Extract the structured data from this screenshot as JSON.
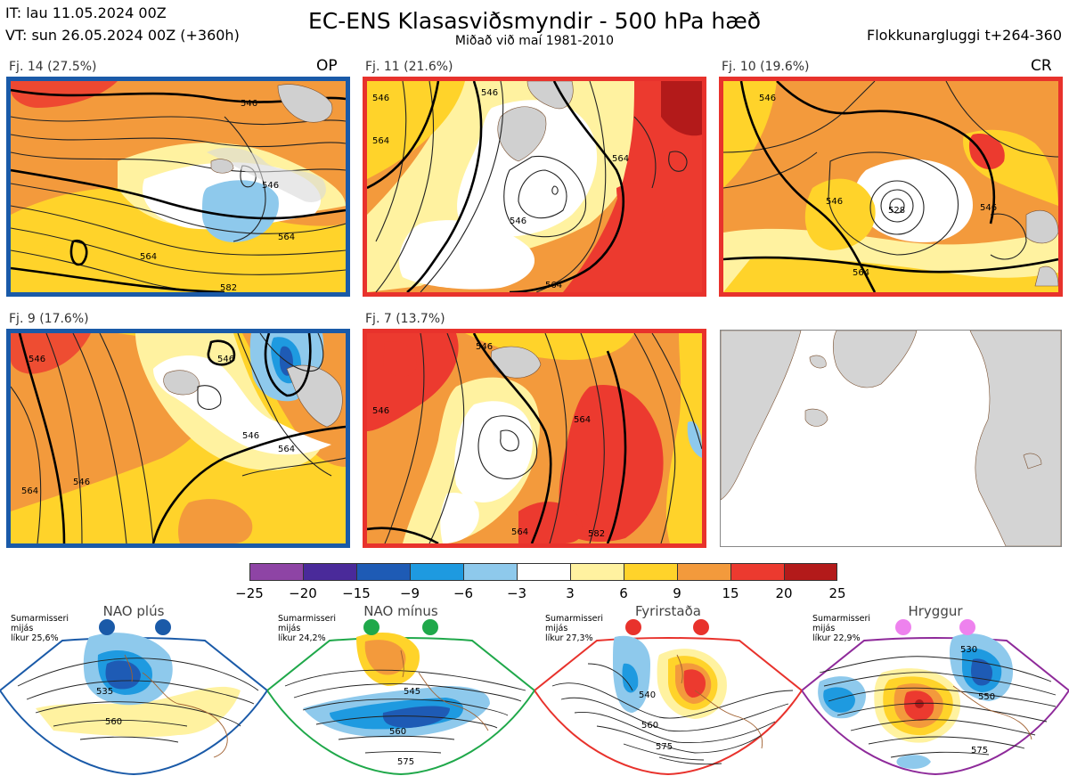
{
  "header": {
    "it_line": "IT: lau 11.05.2024 00Z",
    "vt_line": "VT: sun 26.05.2024 00Z  (+360h)",
    "title": "EC-ENS Klasasviðsmyndir - 500 hPa hæð",
    "subtitle": "Miðað við maí 1981-2010",
    "window": "Flokkunargluggi t+264-360"
  },
  "clusters": [
    {
      "label": "Fj. 14 (27.5%)",
      "tag": "OP",
      "frame_color": "#1a5aa8",
      "contour_labels": [
        "546",
        "546",
        "564",
        "564",
        "582"
      ]
    },
    {
      "label": "Fj. 11 (21.6%)",
      "tag": "",
      "frame_color": "#e8322c",
      "contour_labels": [
        "546",
        "546",
        "564",
        "564",
        "564",
        "546"
      ]
    },
    {
      "label": "Fj. 10 (19.6%)",
      "tag": "CR",
      "frame_color": "#e8322c",
      "contour_labels": [
        "546",
        "528",
        "546",
        "564",
        "546"
      ]
    },
    {
      "label": "Fj. 9 (17.6%)",
      "tag": "",
      "frame_color": "#1a5aa8",
      "contour_labels": [
        "546",
        "546",
        "564",
        "546",
        "564",
        "546"
      ]
    },
    {
      "label": "Fj. 7 (13.7%)",
      "tag": "",
      "frame_color": "#e8322c",
      "contour_labels": [
        "546",
        "546",
        "564",
        "564",
        "582"
      ]
    }
  ],
  "colorbar": {
    "ticks": [
      "−25",
      "−20",
      "−15",
      "−9",
      "−6",
      "−3",
      "3",
      "6",
      "9",
      "15",
      "20",
      "25"
    ],
    "colors": [
      "#8e44a5",
      "#4a2a9a",
      "#1e5bb5",
      "#1e9ae0",
      "#8ec9ec",
      "#ffffff",
      "#fff2a0",
      "#ffd32a",
      "#f39a3c",
      "#ec3a2f",
      "#b31a1a"
    ]
  },
  "regimes": [
    {
      "name": "NAO plús",
      "season": "Sumarmisseri",
      "period": "mijás",
      "likelihood": "líkur 25,6%",
      "color": "#1a5aa8",
      "contour_labels": [
        "535",
        "560"
      ]
    },
    {
      "name": "NAO mínus",
      "season": "Sumarmisseri",
      "period": "mijás",
      "likelihood": "líkur 24,2%",
      "color": "#1fa84a",
      "contour_labels": [
        "545",
        "560",
        "575"
      ]
    },
    {
      "name": "Fyrirstaða",
      "season": "Sumarmisseri",
      "period": "mijás",
      "likelihood": "líkur 27,3%",
      "color": "#e8322c",
      "contour_labels": [
        "540",
        "560",
        "575"
      ]
    },
    {
      "name": "Hryggur",
      "season": "Sumarmisseri",
      "period": "mijás",
      "likelihood": "líkur 22,9%",
      "color": "#8e2a9a",
      "contour_labels": [
        "530",
        "550",
        "575"
      ]
    }
  ]
}
